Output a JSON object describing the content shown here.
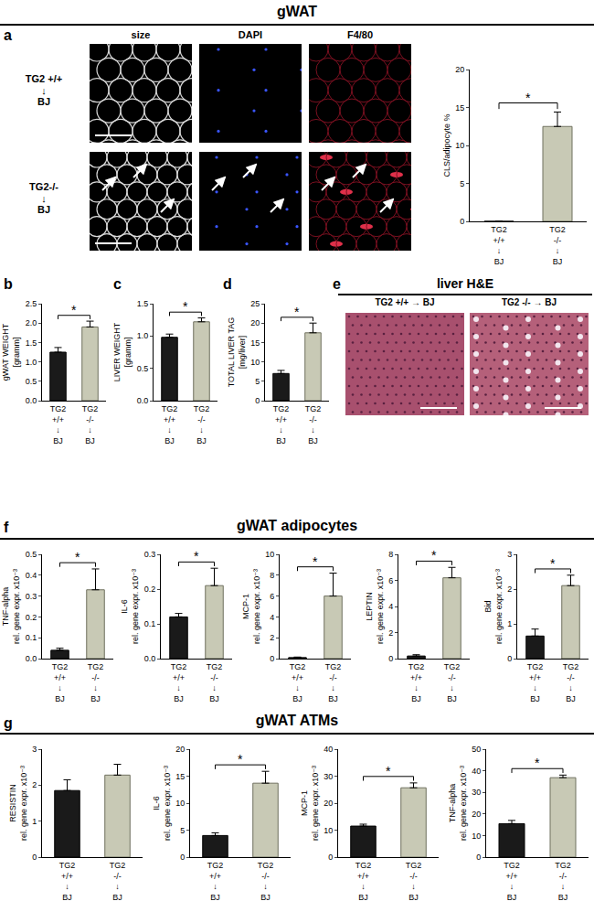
{
  "figure": {
    "panel_labels": [
      "a",
      "b",
      "c",
      "d",
      "e",
      "f",
      "g"
    ],
    "section_titles": [
      "gWAT",
      "gWAT adipocytes",
      "gWAT ATMs"
    ],
    "micrographs": {
      "columns": [
        "size",
        "DAPI",
        "F4/80"
      ],
      "rows": [
        "TG2 +/+\n↓\nBJ",
        "TG2-/-\n↓\nBJ"
      ]
    },
    "liver": {
      "title": "liver H&E",
      "labels": [
        "TG2 +/+ → BJ",
        "TG2 -/- → BJ"
      ]
    }
  },
  "chart_data": [
    {
      "type": "bar",
      "ylabel": "CLS/adipocyte %",
      "categories": [
        "TG2\n+/+\n↓\nBJ",
        "TG2\n-/-\n↓\nBJ"
      ],
      "values": [
        0,
        12.5
      ],
      "errors": [
        0,
        1.9
      ],
      "colors": [
        "#1a1a1a",
        "#c8c9b5"
      ],
      "ylim": [
        0,
        20
      ],
      "yticks": [
        0,
        5,
        10,
        15,
        20
      ],
      "significance": "*"
    },
    {
      "type": "bar",
      "ylabel": "gWAT WEIGHT\n[gramm]",
      "categories": [
        "TG2\n+/+\n↓\nBJ",
        "TG2\n-/-\n↓\nBJ"
      ],
      "values": [
        1.25,
        1.9
      ],
      "errors": [
        0.12,
        0.15
      ],
      "colors": [
        "#1a1a1a",
        "#c8c9b5"
      ],
      "ylim": [
        0,
        2.5
      ],
      "yticks": [
        {
          "value": 0,
          "label": "0.0"
        },
        0.5,
        {
          "value": 1,
          "label": "1.0"
        },
        1.5,
        {
          "value": 2,
          "label": "2.0"
        },
        2.5
      ],
      "significance": "*"
    },
    {
      "type": "bar",
      "ylabel": "LIVER WEIGHT\n[gramm]",
      "categories": [
        "TG2\n+/+\n↓\nBJ",
        "TG2\n-/-\n↓\nBJ"
      ],
      "values": [
        0.98,
        1.22
      ],
      "errors": [
        0.05,
        0.06
      ],
      "colors": [
        "#1a1a1a",
        "#c8c9b5"
      ],
      "ylim": [
        0,
        1.5
      ],
      "yticks": [
        {
          "value": 0,
          "label": "0.0"
        },
        0.5,
        {
          "value": 1,
          "label": "1.0"
        },
        1.5
      ],
      "significance": "*"
    },
    {
      "type": "bar",
      "ylabel": "TOTAL LIVER TAG\n[mg/liver]",
      "categories": [
        "TG2\n+/+\n↓\nBJ",
        "TG2\n-/-\n↓\nBJ"
      ],
      "values": [
        7,
        17.5
      ],
      "errors": [
        0.8,
        2.5
      ],
      "colors": [
        "#1a1a1a",
        "#c8c9b5"
      ],
      "ylim": [
        0,
        25
      ],
      "yticks": [
        0,
        5,
        10,
        15,
        20,
        25
      ],
      "significance": "*"
    },
    {
      "type": "bar",
      "ylabel": "TNF-alpha\nrel. gene expr. x10⁻³",
      "categories": [
        "TG2\n+/+\n↓\nBJ",
        "TG2\n-/-\n↓\nBJ"
      ],
      "values": [
        0.04,
        0.33
      ],
      "errors": [
        0.01,
        0.1
      ],
      "colors": [
        "#1a1a1a",
        "#c8c9b5"
      ],
      "ylim": [
        0,
        0.5
      ],
      "yticks": [
        {
          "value": 0,
          "label": "0.0"
        },
        0.1,
        0.2,
        0.3,
        0.4,
        0.5
      ],
      "significance": "*"
    },
    {
      "type": "bar",
      "ylabel": "IL-6\nrel. gene expr. x10⁻³",
      "categories": [
        "TG2\n+/+\n↓\nBJ",
        "TG2\n-/-\n↓\nBJ"
      ],
      "values": [
        0.12,
        0.21
      ],
      "errors": [
        0.01,
        0.05
      ],
      "colors": [
        "#1a1a1a",
        "#c8c9b5"
      ],
      "ylim": [
        0,
        0.3
      ],
      "yticks": [
        {
          "value": 0,
          "label": "0.0"
        },
        0.1,
        0.2,
        0.3
      ],
      "significance": "*"
    },
    {
      "type": "bar",
      "ylabel": "MCP-1\nrel. gene expr. x10⁻³",
      "categories": [
        "TG2\n+/+\n↓\nBJ",
        "TG2\n-/-\n↓\nBJ"
      ],
      "values": [
        0.1,
        6.0
      ],
      "errors": [
        0.05,
        2.2
      ],
      "colors": [
        "#1a1a1a",
        "#c8c9b5"
      ],
      "ylim": [
        0,
        10
      ],
      "yticks": [
        0,
        2,
        4,
        6,
        8,
        10
      ],
      "significance": "*"
    },
    {
      "type": "bar",
      "ylabel": "LEPTIN\nrel. gene expr. x10⁻³",
      "categories": [
        "TG2\n+/+\n↓\nBJ",
        "TG2\n-/-\n↓\nBJ"
      ],
      "values": [
        0.2,
        6.2
      ],
      "errors": [
        0.1,
        0.8
      ],
      "colors": [
        "#1a1a1a",
        "#c8c9b5"
      ],
      "ylim": [
        0,
        8
      ],
      "yticks": [
        0,
        2,
        4,
        6,
        8
      ],
      "significance": "*"
    },
    {
      "type": "bar",
      "ylabel": "Bid\nrel. gene expr. x10⁻³",
      "categories": [
        "TG2\n+/+\n↓\nBJ",
        "TG2\n-/-\n↓\nBJ"
      ],
      "values": [
        0.65,
        2.1
      ],
      "errors": [
        0.2,
        0.3
      ],
      "colors": [
        "#1a1a1a",
        "#c8c9b5"
      ],
      "ylim": [
        0,
        3
      ],
      "yticks": [
        0,
        1,
        2,
        3
      ],
      "significance": "*"
    },
    {
      "type": "bar",
      "ylabel": "RESISTIN\nrel. gene expr. x10⁻³",
      "categories": [
        "TG2\n+/+\n↓\nBJ",
        "TG2\n-/-\n↓\nBJ"
      ],
      "values": [
        1.85,
        2.28
      ],
      "errors": [
        0.3,
        0.3
      ],
      "colors": [
        "#1a1a1a",
        "#c8c9b5"
      ],
      "ylim": [
        0,
        3
      ],
      "yticks": [
        0,
        1,
        2,
        3
      ]
    },
    {
      "type": "bar",
      "ylabel": "IL-6\nrel. gene expr. x10⁻³",
      "categories": [
        "TG2\n+/+\n↓\nBJ",
        "TG2\n-/-\n↓\nBJ"
      ],
      "values": [
        4,
        13.7
      ],
      "errors": [
        0.5,
        2.2
      ],
      "colors": [
        "#1a1a1a",
        "#c8c9b5"
      ],
      "ylim": [
        0,
        20
      ],
      "yticks": [
        0,
        5,
        10,
        15,
        20
      ],
      "significance": "*"
    },
    {
      "type": "bar",
      "ylabel": "MCP-1\nrel. gene expr. x10⁻³",
      "categories": [
        "TG2\n+/+\n↓\nBJ",
        "TG2\n-/-\n↓\nBJ"
      ],
      "values": [
        11.5,
        25.7
      ],
      "errors": [
        0.7,
        1.8
      ],
      "colors": [
        "#1a1a1a",
        "#c8c9b5"
      ],
      "ylim": [
        0,
        40
      ],
      "yticks": [
        0,
        10,
        20,
        30,
        40
      ],
      "significance": "*"
    },
    {
      "type": "bar",
      "ylabel": "TNF-alpha\nrel. gene expr. x10⁻³",
      "categories": [
        "TG2\n+/+\n↓\nBJ",
        "TG2\n-/-\n↓\nBJ"
      ],
      "values": [
        15.5,
        36.8
      ],
      "errors": [
        1.5,
        1.2
      ],
      "colors": [
        "#1a1a1a",
        "#c8c9b5"
      ],
      "ylim": [
        0,
        50
      ],
      "yticks": [
        0,
        10,
        20,
        30,
        40,
        50
      ],
      "significance": "*"
    }
  ]
}
